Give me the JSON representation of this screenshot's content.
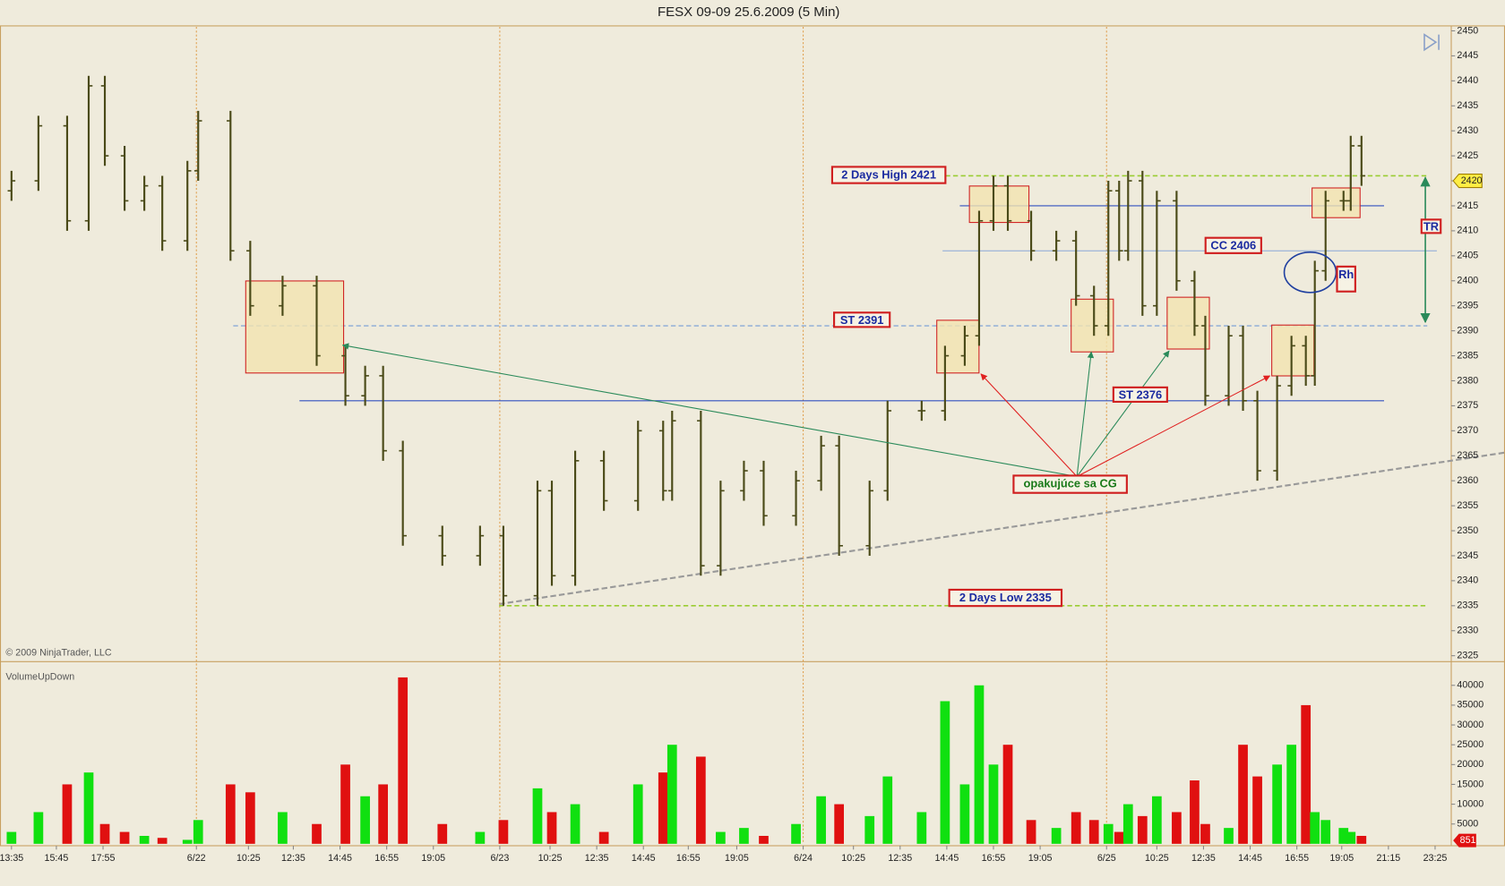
{
  "chart_data": {
    "type": "ohlc",
    "title": "FESX 09-09  25.6.2009 (5 Min)",
    "watermark": "© 2009 NinjaTrader, LLC",
    "indicator": "VolumeUpDown",
    "x": [
      0,
      15,
      31,
      43,
      52,
      63,
      74,
      84,
      98,
      104,
      122,
      133,
      151,
      170,
      186,
      197,
      207,
      218,
      240,
      261,
      274,
      293,
      301,
      314,
      330,
      349,
      363,
      368,
      384,
      395,
      408,
      419,
      437,
      451,
      461,
      478,
      488,
      507,
      520,
      531,
      539,
      547,
      555,
      568,
      582,
      593,
      603,
      611,
      617,
      622,
      630,
      638,
      649,
      659,
      665,
      678,
      686,
      694,
      705,
      713,
      721,
      726,
      732,
      742,
      746,
      752
    ],
    "open": [
      2418,
      2420,
      2431,
      2412,
      2439,
      2425,
      2416,
      2419,
      2408,
      2422,
      2432,
      2406,
      2395,
      2399,
      2385,
      2377,
      2381,
      2366,
      2349,
      2345,
      2349,
      2337,
      2358,
      2341,
      2364,
      2356,
      2370,
      2358,
      2372,
      2343,
      2358,
      2362,
      2353,
      2360,
      2367,
      2347,
      2358,
      2374,
      2374,
      2385,
      2389,
      2412,
      2419,
      2412,
      2406,
      2408,
      2397,
      2391,
      2418,
      2406,
      2420,
      2395,
      2416,
      2400,
      2391,
      2377,
      2389,
      2376,
      2362,
      2379,
      2387,
      2381,
      2402,
      2416,
      2416,
      2427
    ],
    "high": [
      2422,
      2433,
      2433,
      2441,
      2441,
      2427,
      2421,
      2421,
      2424,
      2434,
      2434,
      2408,
      2401,
      2401,
      2387,
      2383,
      2383,
      2368,
      2351,
      2351,
      2351,
      2360,
      2360,
      2366,
      2366,
      2372,
      2372,
      2374,
      2374,
      2360,
      2364,
      2364,
      2362,
      2369,
      2369,
      2360,
      2376,
      2376,
      2387,
      2391,
      2414,
      2421,
      2421,
      2414,
      2410,
      2410,
      2399,
      2420,
      2420,
      2422,
      2422,
      2418,
      2418,
      2402,
      2393,
      2391,
      2391,
      2378,
      2381,
      2389,
      2389,
      2404,
      2418,
      2418,
      2429,
      2429
    ],
    "low": [
      2416,
      2418,
      2410,
      2410,
      2423,
      2414,
      2414,
      2406,
      2406,
      2420,
      2404,
      2393,
      2393,
      2383,
      2375,
      2375,
      2364,
      2347,
      2343,
      2343,
      2335,
      2335,
      2339,
      2339,
      2354,
      2354,
      2356,
      2356,
      2341,
      2341,
      2356,
      2351,
      2351,
      2358,
      2345,
      2345,
      2356,
      2372,
      2372,
      2383,
      2387,
      2410,
      2410,
      2404,
      2404,
      2395,
      2389,
      2389,
      2404,
      2404,
      2393,
      2393,
      2398,
      2389,
      2375,
      2375,
      2374,
      2360,
      2360,
      2377,
      2379,
      2379,
      2400,
      2414,
      2414,
      2419
    ],
    "close": [
      2420,
      2431,
      2412,
      2439,
      2425,
      2416,
      2419,
      2408,
      2422,
      2432,
      2406,
      2395,
      2399,
      2385,
      2377,
      2381,
      2366,
      2349,
      2345,
      2349,
      2337,
      2358,
      2341,
      2364,
      2356,
      2370,
      2358,
      2372,
      2343,
      2358,
      2362,
      2353,
      2360,
      2367,
      2347,
      2358,
      2374,
      2374,
      2385,
      2389,
      2412,
      2419,
      2412,
      2406,
      2408,
      2397,
      2391,
      2418,
      2406,
      2420,
      2395,
      2416,
      2400,
      2391,
      2377,
      2389,
      2376,
      2362,
      2379,
      2387,
      2381,
      2402,
      2416,
      2416,
      2427,
      2421
    ],
    "color": "#4a4a18",
    "volume": [
      3000,
      8000,
      15000,
      18000,
      5000,
      3000,
      2000,
      1500,
      1000,
      6000,
      15000,
      13000,
      8000,
      5000,
      20000,
      12000,
      15000,
      42000,
      5000,
      3000,
      6000,
      14000,
      8000,
      10000,
      3000,
      15000,
      18000,
      25000,
      22000,
      3000,
      4000,
      2000,
      5000,
      12000,
      10000,
      7000,
      17000,
      8000,
      36000,
      15000,
      40000,
      20000,
      25000,
      6000,
      4000,
      8000,
      6000,
      5000,
      3000,
      10000,
      7000,
      12000,
      8000,
      16000,
      5000,
      4000,
      25000,
      17000,
      20000,
      25000,
      35000,
      8000,
      6000,
      4000,
      3000,
      2000
    ],
    "up_color": "#10e010",
    "down_color": "#e01010",
    "last_price": 2420,
    "last_volume": 851,
    "xlim": [
      -6.4,
      802
    ],
    "xticks": [
      {
        "value": 0,
        "label": "13:35"
      },
      {
        "value": 25,
        "label": "15:45"
      },
      {
        "value": 51,
        "label": "17:55"
      },
      {
        "value": 103,
        "label": "6/22"
      },
      {
        "value": 132,
        "label": "10:25"
      },
      {
        "value": 157,
        "label": "12:35"
      },
      {
        "value": 183,
        "label": "14:45"
      },
      {
        "value": 209,
        "label": "16:55"
      },
      {
        "value": 235,
        "label": "19:05"
      },
      {
        "value": 272,
        "label": "6/23"
      },
      {
        "value": 300,
        "label": "10:25"
      },
      {
        "value": 326,
        "label": "12:35"
      },
      {
        "value": 352,
        "label": "14:45"
      },
      {
        "value": 377,
        "label": "16:55"
      },
      {
        "value": 404,
        "label": "19:05"
      },
      {
        "value": 441,
        "label": "6/24"
      },
      {
        "value": 469,
        "label": "10:25"
      },
      {
        "value": 495,
        "label": "12:35"
      },
      {
        "value": 521,
        "label": "14:45"
      },
      {
        "value": 547,
        "label": "16:55"
      },
      {
        "value": 573,
        "label": "19:05"
      },
      {
        "value": 610,
        "label": "6/25"
      },
      {
        "value": 638,
        "label": "10:25"
      },
      {
        "value": 664,
        "label": "12:35"
      },
      {
        "value": 690,
        "label": "14:45"
      },
      {
        "value": 716,
        "label": "16:55"
      },
      {
        "value": 741,
        "label": "19:05"
      },
      {
        "value": 767,
        "label": "21:15"
      },
      {
        "value": 793,
        "label": "23:25"
      }
    ],
    "day_separators": [
      103,
      272,
      441,
      610
    ],
    "ylim": [
      2324.2,
      2450.8
    ],
    "yticks": [
      2325,
      2330,
      2335,
      2340,
      2345,
      2350,
      2355,
      2360,
      2365,
      2370,
      2375,
      2380,
      2385,
      2390,
      2395,
      2400,
      2405,
      2410,
      2415,
      2420,
      2425,
      2430,
      2435,
      2440,
      2445,
      2450
    ],
    "y2lim": [
      0,
      45500
    ],
    "y2ticks": [
      5000,
      10000,
      15000,
      20000,
      25000,
      30000,
      35000,
      40000
    ],
    "levels": [
      {
        "value": 2421,
        "color": "#9acd32",
        "dash": true
      },
      {
        "value": 2335,
        "color": "#9acd32",
        "dash": true
      },
      {
        "value": 2391,
        "color": "#9ab4d8",
        "dash": true
      },
      {
        "value": 2415,
        "color": "#3050c0",
        "dash": false
      },
      {
        "value": 2406,
        "color": "#8aa8d8",
        "dash": false
      },
      {
        "value": 2376,
        "color": "#3050c0",
        "dash": false
      }
    ],
    "annotations": [
      "2 Days High 2421",
      "ST  2391",
      "CC 2406",
      "ST 2376",
      "2 Days Low 2335",
      "opakujúce sa CG",
      "TR",
      "Rh"
    ]
  }
}
